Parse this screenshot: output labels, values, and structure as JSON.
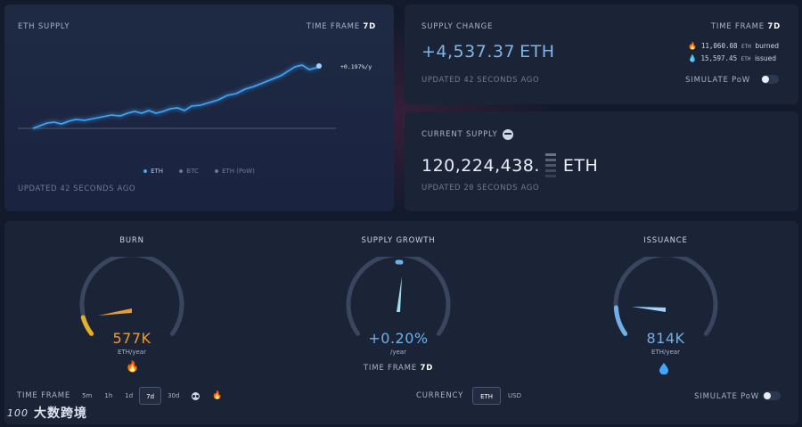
{
  "eth_supply": {
    "title": "ETH SUPPLY",
    "time_frame_label": "TIME FRAME",
    "time_frame_value": "7d",
    "current_marker": "+0.197%/y",
    "legend": [
      "ETH",
      "BTC",
      "ETH (PoW)"
    ],
    "updated_prefix": "UPDATED",
    "updated_value": "42",
    "updated_suffix": "SECONDS AGO"
  },
  "supply_change": {
    "title": "SUPPLY CHANGE",
    "value": "+4,537.37",
    "unit": "ETH",
    "time_frame_label": "TIME FRAME",
    "time_frame_value": "7d",
    "burned_amount": "11,060.08",
    "burned_unit": "ETH",
    "burned_label": "burned",
    "issued_amount": "15,597.45",
    "issued_unit": "ETH",
    "issued_label": "issued",
    "updated_prefix": "UPDATED",
    "updated_value": "42",
    "updated_suffix": "SECONDS AGO",
    "simulate_label": "SIMULATE PoW"
  },
  "current_supply": {
    "title": "CURRENT SUPPLY",
    "value": "120,224,438.",
    "unit": "ETH",
    "updated_prefix": "UPDATED",
    "updated_value": "20",
    "updated_suffix": "SECONDS AGO"
  },
  "gauges": {
    "burn": {
      "title": "BURN",
      "value": "577K",
      "unit": "ETH/year",
      "color": "#e89a3c"
    },
    "supply_growth": {
      "title": "SUPPLY GROWTH",
      "value": "+0.20%",
      "unit": "/year",
      "color": "#6fb0e6",
      "time_frame_label": "TIME FRAME",
      "time_frame_value": "7d"
    },
    "issuance": {
      "title": "ISSUANCE",
      "value": "814K",
      "unit": "ETH/year",
      "color": "#6fb0e6"
    }
  },
  "bottom_bar": {
    "time_frame_label": "TIME FRAME",
    "time_frames": [
      "5m",
      "1h",
      "1d",
      "7d",
      "30d"
    ],
    "selected_time_frame": "7d",
    "currency_label": "CURRENCY",
    "currencies": [
      "ETH",
      "USD"
    ],
    "selected_currency": "ETH",
    "simulate_label": "SIMULATE PoW"
  },
  "watermark": {
    "logo": "100",
    "text": "大数跨境"
  },
  "colors": {
    "accent": "#3ea8ff",
    "burn": "#e89a3c",
    "card": "#1b2436",
    "bg": "#121a2c"
  }
}
